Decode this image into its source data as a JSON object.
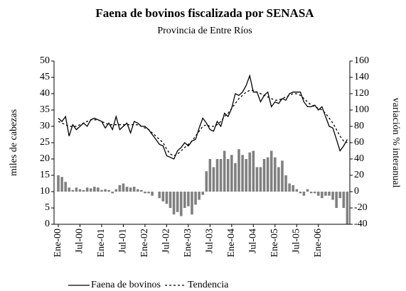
{
  "chart_data": {
    "type": "line",
    "title": "Faena de bovinos fiscalizada por SENASA",
    "subtitle": "Provincia de Entre Ríos",
    "y_label": "miles de cabezas",
    "y2_label": "variación % interanual",
    "categories": [
      "Ene-00",
      null,
      null,
      null,
      null,
      null,
      "Jul-00",
      null,
      null,
      null,
      null,
      null,
      "Ene-01",
      null,
      null,
      null,
      null,
      null,
      "Jul-01",
      null,
      null,
      null,
      null,
      null,
      "Ene-02",
      null,
      null,
      null,
      null,
      null,
      "Jul-02",
      null,
      null,
      null,
      null,
      null,
      "Ene-03",
      null,
      null,
      null,
      null,
      null,
      "Jul-03",
      null,
      null,
      null,
      null,
      null,
      "Ene-04",
      null,
      null,
      null,
      null,
      null,
      "Jul-04",
      null,
      null,
      null,
      null,
      null,
      "Ene-05",
      null,
      null,
      null,
      null,
      null,
      "Jul-05",
      null,
      null,
      null,
      null,
      null,
      "Ene-06",
      null,
      null,
      null,
      null,
      null,
      null,
      null,
      null
    ],
    "ylim": [
      0,
      50
    ],
    "yticks": [
      0,
      5,
      10,
      15,
      20,
      25,
      30,
      35,
      40,
      45,
      50
    ],
    "y2lim": [
      -40,
      160
    ],
    "y2ticks": [
      -40,
      -20,
      0,
      20,
      40,
      60,
      80,
      100,
      120,
      140,
      160
    ],
    "series": [
      {
        "name": "Faena de bovinos",
        "type": "line",
        "color": "#000000",
        "line_style": "solid",
        "values": [
          32.5,
          31.5,
          33,
          27,
          30.5,
          29,
          30,
          31,
          30,
          32,
          32.5,
          32,
          31.5,
          29.5,
          31,
          29,
          33,
          29,
          30,
          31,
          28,
          31.5,
          31,
          30,
          30,
          29,
          27.5,
          26,
          24.5,
          24,
          21,
          20.5,
          20,
          22.5,
          23.5,
          25,
          24,
          25.5,
          26,
          29.5,
          32.5,
          31,
          29,
          28.5,
          31.5,
          30,
          34,
          33,
          35.5,
          40,
          39.5,
          40.5,
          42.5,
          45.5,
          40.5,
          40.5,
          37.5,
          39.5,
          40.5,
          36,
          37.5,
          37,
          38.5,
          38,
          40,
          40.5,
          40.5,
          40.5,
          37.5,
          36,
          36,
          36.5,
          35,
          36,
          33,
          30,
          29.5,
          26,
          22.5,
          24,
          26
        ]
      },
      {
        "name": "Tendencia",
        "type": "line",
        "color": "#000000",
        "line_style": "dashed",
        "values": [
          31.5,
          31,
          30.5,
          30,
          30,
          30,
          30.5,
          31,
          31.5,
          32,
          32,
          32,
          31.5,
          31,
          30.5,
          30.5,
          30.5,
          30.5,
          30.5,
          30.5,
          30.5,
          30.5,
          30.5,
          30,
          29.5,
          29,
          28,
          27,
          26,
          25,
          23,
          21.5,
          21,
          21.5,
          22.5,
          23.5,
          24.5,
          25.5,
          27,
          28.5,
          30,
          30.5,
          30,
          30,
          30.5,
          31.5,
          33,
          34,
          35.5,
          37,
          38.5,
          39.5,
          40.5,
          41,
          41,
          40.5,
          40,
          39.5,
          39,
          38.5,
          38,
          38,
          38.5,
          39,
          39.5,
          40,
          40,
          39.5,
          38.5,
          37.5,
          36.5,
          36,
          35.5,
          35,
          34,
          32.5,
          31,
          29,
          27,
          25.5,
          25
        ]
      },
      {
        "type": "bar",
        "axis": "y2",
        "color": "#808080",
        "values": [
          20,
          18,
          12,
          5,
          2,
          5,
          3,
          2,
          5,
          4,
          6,
          5,
          2,
          3,
          2,
          -2,
          3,
          8,
          10,
          6,
          5,
          6,
          3,
          2,
          -2,
          -2,
          -5,
          0,
          -8,
          -12,
          -15,
          -20,
          -28,
          -25,
          -30,
          -20,
          -18,
          -28,
          -16,
          -10,
          -4,
          25,
          40,
          30,
          40,
          40,
          50,
          40,
          45,
          35,
          52,
          45,
          40,
          48,
          50,
          30,
          30,
          40,
          42,
          50,
          42,
          30,
          38,
          20,
          10,
          8,
          3,
          -2,
          -5,
          3,
          -2,
          -2,
          -5,
          -8,
          -5,
          -5,
          -10,
          -20,
          -8,
          -20,
          -40
        ]
      }
    ],
    "legend": "bottom"
  }
}
